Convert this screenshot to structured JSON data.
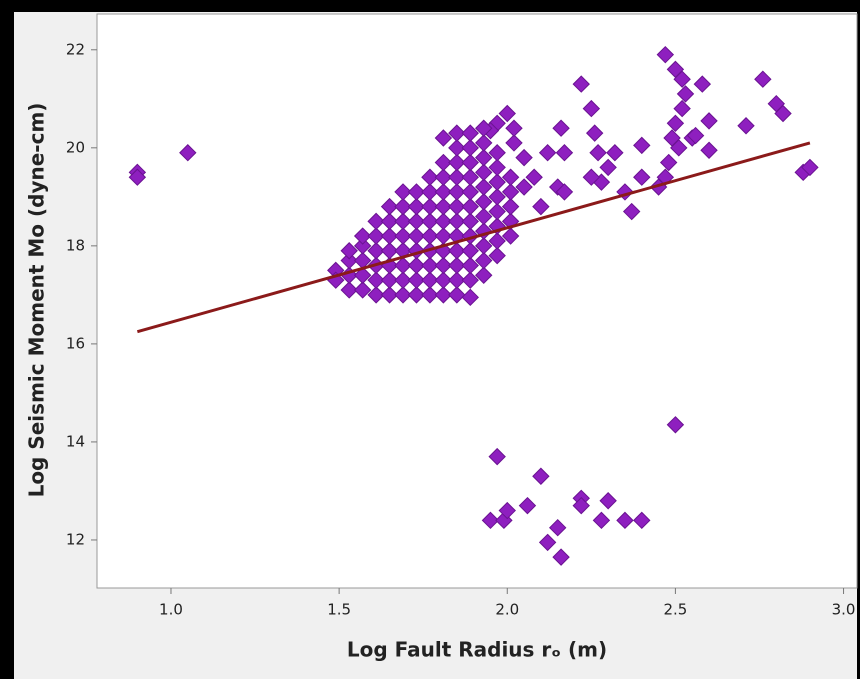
{
  "chart_data": {
    "type": "scatter",
    "xlabel": "Log Fault Radius  rₒ (m)",
    "ylabel": "Log Seismic Moment Mo (dyne-cm)",
    "xlim": [
      0.78,
      3.04
    ],
    "ylim": [
      11.02,
      22.73
    ],
    "xticks": [
      {
        "value": 1,
        "label": "1.0"
      },
      1.5,
      {
        "value": 2,
        "label": "2.0"
      },
      2.5,
      {
        "value": 3,
        "label": "3.0"
      }
    ],
    "yticks": [
      12,
      14,
      16,
      18,
      20,
      22
    ],
    "series": [
      {
        "color": "#8e1fbf",
        "marker": "diamond",
        "x": [
          0.9,
          0.9,
          1.05,
          1.97,
          1.95,
          1.99,
          2.0,
          2.06,
          2.1,
          2.12,
          2.15,
          2.16,
          2.22,
          2.22,
          2.28,
          2.3,
          2.35,
          2.4,
          2.5,
          2.22,
          2.25,
          2.26,
          2.27,
          2.3,
          2.32,
          2.28,
          2.25,
          2.35,
          2.37,
          2.4,
          2.4,
          2.45,
          2.47,
          2.48,
          2.47,
          2.5,
          2.52,
          2.53,
          2.52,
          2.5,
          2.49,
          2.51,
          2.55,
          2.56,
          2.58,
          2.6,
          2.6,
          2.71,
          2.76,
          2.8,
          2.82,
          2.88,
          2.9,
          2.16,
          2.17,
          2.15,
          2.17,
          2.12,
          2.1,
          2.05,
          2.08,
          2.05,
          2.02,
          2.02,
          2.0,
          1.97,
          1.95,
          1.49,
          1.49,
          1.53,
          1.53,
          1.53,
          1.53,
          1.57,
          1.57,
          1.57,
          1.57,
          1.57,
          1.61,
          1.61,
          1.61,
          1.61,
          1.61,
          1.61,
          1.65,
          1.65,
          1.65,
          1.65,
          1.65,
          1.65,
          1.65,
          1.69,
          1.69,
          1.69,
          1.69,
          1.69,
          1.69,
          1.69,
          1.69,
          1.73,
          1.73,
          1.73,
          1.73,
          1.73,
          1.73,
          1.73,
          1.73,
          1.77,
          1.77,
          1.77,
          1.77,
          1.77,
          1.77,
          1.77,
          1.77,
          1.77,
          1.81,
          1.81,
          1.81,
          1.81,
          1.81,
          1.81,
          1.81,
          1.81,
          1.81,
          1.81,
          1.81,
          1.85,
          1.85,
          1.85,
          1.85,
          1.85,
          1.85,
          1.85,
          1.85,
          1.85,
          1.85,
          1.85,
          1.85,
          1.89,
          1.89,
          1.89,
          1.89,
          1.89,
          1.89,
          1.89,
          1.89,
          1.89,
          1.89,
          1.89,
          1.89,
          1.93,
          1.93,
          1.93,
          1.93,
          1.93,
          1.93,
          1.93,
          1.93,
          1.93,
          1.93,
          1.93,
          1.97,
          1.97,
          1.97,
          1.97,
          1.97,
          1.97,
          1.97,
          1.97,
          2.01,
          2.01,
          2.01,
          2.01,
          2.01
        ],
        "values": [
          19.5,
          19.4,
          19.9,
          13.7,
          12.4,
          12.4,
          12.6,
          12.7,
          13.3,
          11.95,
          12.25,
          11.65,
          12.85,
          12.7,
          12.4,
          12.8,
          12.4,
          12.4,
          14.35,
          21.3,
          20.8,
          20.3,
          19.9,
          19.6,
          19.9,
          19.3,
          19.4,
          19.1,
          18.7,
          19.4,
          20.05,
          19.2,
          19.4,
          19.7,
          21.9,
          21.6,
          21.4,
          21.1,
          20.8,
          20.5,
          20.2,
          20.0,
          20.2,
          20.25,
          21.3,
          20.55,
          19.95,
          20.45,
          21.4,
          20.9,
          20.7,
          19.5,
          19.6,
          20.4,
          19.9,
          19.2,
          19.1,
          19.9,
          18.8,
          19.2,
          19.4,
          19.8,
          20.1,
          20.4,
          20.7,
          20.5,
          20.35,
          17.5,
          17.3,
          17.1,
          17.4,
          17.7,
          17.9,
          17.1,
          17.4,
          17.7,
          18.0,
          18.2,
          17.0,
          17.3,
          17.6,
          17.9,
          18.2,
          18.5,
          17.0,
          17.3,
          17.6,
          17.9,
          18.2,
          18.5,
          18.8,
          17.0,
          17.3,
          17.6,
          17.9,
          18.2,
          18.5,
          18.8,
          19.1,
          17.0,
          17.3,
          17.6,
          17.9,
          18.2,
          18.5,
          18.8,
          19.1,
          17.0,
          17.3,
          17.6,
          17.9,
          18.2,
          18.5,
          18.8,
          19.1,
          19.4,
          17.0,
          17.3,
          17.6,
          17.9,
          18.2,
          18.5,
          18.8,
          19.1,
          19.4,
          19.7,
          20.2,
          17.0,
          17.3,
          17.6,
          17.9,
          18.2,
          18.5,
          18.8,
          19.1,
          19.4,
          19.7,
          20.0,
          20.3,
          16.95,
          17.3,
          17.6,
          17.9,
          18.2,
          18.5,
          18.8,
          19.1,
          19.4,
          19.7,
          20.0,
          20.3,
          17.4,
          17.7,
          18.0,
          18.3,
          18.6,
          18.9,
          19.2,
          19.5,
          19.8,
          20.1,
          20.4,
          17.8,
          18.1,
          18.4,
          18.7,
          19.0,
          19.3,
          19.6,
          19.9,
          18.2,
          18.5,
          18.8,
          19.1,
          19.4
        ]
      },
      {
        "color": "#8b1a1a",
        "marker": "line",
        "x": [
          0.9,
          2.9
        ],
        "values": [
          16.25,
          20.1
        ]
      }
    ]
  }
}
